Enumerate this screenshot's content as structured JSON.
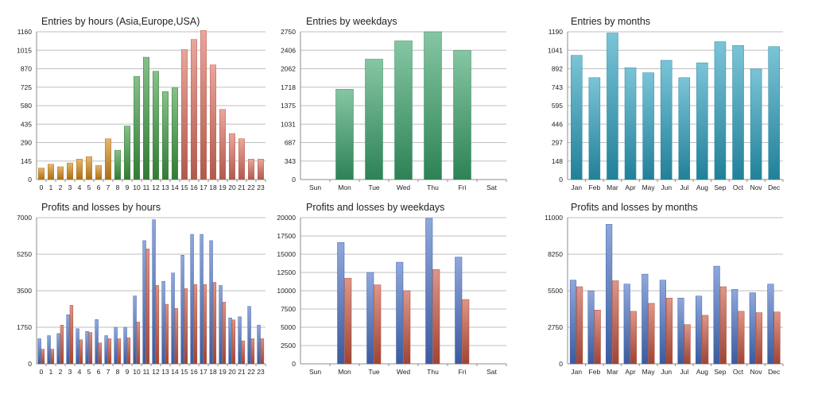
{
  "colors": {
    "hours_asia": "#d48a1a",
    "hours_europe": "#3f9a42",
    "hours_usa": "#dc6f5f",
    "weekdays": "#3aa36a",
    "months": "#2aa0bf",
    "profit": "#4a72c6",
    "loss": "#c9553f"
  },
  "chart_data": [
    {
      "id": "entries-by-hours",
      "type": "bar",
      "title": "Entries by hours (Asia,Europe,USA)",
      "categories": [
        "0",
        "1",
        "2",
        "3",
        "4",
        "5",
        "6",
        "7",
        "8",
        "9",
        "10",
        "11",
        "12",
        "13",
        "14",
        "15",
        "16",
        "17",
        "18",
        "19",
        "20",
        "21",
        "22",
        "23"
      ],
      "values": [
        90,
        120,
        100,
        130,
        160,
        180,
        110,
        320,
        230,
        420,
        810,
        960,
        850,
        690,
        720,
        1020,
        1100,
        1170,
        900,
        550,
        360,
        320,
        160,
        160
      ],
      "bar_colors": [
        "hours_asia",
        "hours_asia",
        "hours_asia",
        "hours_asia",
        "hours_asia",
        "hours_asia",
        "hours_asia",
        "hours_asia",
        "hours_europe",
        "hours_europe",
        "hours_europe",
        "hours_europe",
        "hours_europe",
        "hours_europe",
        "hours_europe",
        "hours_usa",
        "hours_usa",
        "hours_usa",
        "hours_usa",
        "hours_usa",
        "hours_usa",
        "hours_usa",
        "hours_usa",
        "hours_usa"
      ],
      "ylim": [
        0,
        1160
      ],
      "yticks": [
        "0",
        "145",
        "290",
        "435",
        "580",
        "725",
        "870",
        "1015",
        "1160"
      ],
      "grid": true
    },
    {
      "id": "entries-by-weekdays",
      "type": "bar",
      "title": "Entries by weekdays",
      "categories": [
        "Sun",
        "Mon",
        "Tue",
        "Wed",
        "Thu",
        "Fri",
        "Sat"
      ],
      "values": [
        0,
        1680,
        2240,
        2580,
        2750,
        2400,
        0
      ],
      "color": "weekdays",
      "ylim": [
        0,
        2750
      ],
      "yticks": [
        "0",
        "343",
        "687",
        "1031",
        "1375",
        "1718",
        "2062",
        "2406",
        "2750"
      ],
      "grid": true
    },
    {
      "id": "entries-by-months",
      "type": "bar",
      "title": "Entries by months",
      "categories": [
        "Jan",
        "Feb",
        "Mar",
        "Apr",
        "May",
        "Jun",
        "Jul",
        "Aug",
        "Sep",
        "Oct",
        "Nov",
        "Dec"
      ],
      "values": [
        1000,
        820,
        1180,
        900,
        860,
        960,
        820,
        940,
        1110,
        1080,
        890,
        1070
      ],
      "color": "months",
      "ylim": [
        0,
        1190
      ],
      "yticks": [
        "0",
        "148",
        "297",
        "446",
        "595",
        "743",
        "892",
        "1041",
        "1190"
      ],
      "grid": true
    },
    {
      "id": "profits-losses-by-hours",
      "type": "bar",
      "title": "Profits and losses by hours",
      "categories": [
        "0",
        "1",
        "2",
        "3",
        "4",
        "5",
        "6",
        "7",
        "8",
        "9",
        "10",
        "11",
        "12",
        "13",
        "14",
        "15",
        "16",
        "17",
        "18",
        "19",
        "20",
        "21",
        "22",
        "23"
      ],
      "series": [
        {
          "name": "Profits",
          "color": "profit",
          "values": [
            1200,
            1350,
            1450,
            2350,
            1680,
            1550,
            2120,
            1350,
            1750,
            1750,
            3250,
            5900,
            6900,
            3950,
            4350,
            5200,
            6200,
            6200,
            5900,
            3750,
            2200,
            2250,
            2750,
            1850
          ]
        },
        {
          "name": "Losses",
          "color": "loss",
          "values": [
            700,
            700,
            1850,
            2800,
            1150,
            1500,
            1000,
            1200,
            1200,
            1250,
            2000,
            5500,
            3750,
            2850,
            2650,
            3600,
            3800,
            3800,
            3900,
            2950,
            2100,
            1100,
            1200,
            1200
          ]
        }
      ],
      "ylim": [
        0,
        7000
      ],
      "yticks": [
        "0",
        "1750",
        "3500",
        "5250",
        "7000"
      ],
      "grid": true
    },
    {
      "id": "profits-losses-by-weekdays",
      "type": "bar",
      "title": "Profits and losses by weekdays",
      "categories": [
        "Sun",
        "Mon",
        "Tue",
        "Wed",
        "Thu",
        "Fri",
        "Sat"
      ],
      "series": [
        {
          "name": "Profits",
          "color": "profit",
          "values": [
            0,
            16600,
            12500,
            13900,
            19900,
            14600,
            0
          ]
        },
        {
          "name": "Losses",
          "color": "loss",
          "values": [
            0,
            11700,
            10800,
            10000,
            12900,
            8800,
            0
          ]
        }
      ],
      "ylim": [
        0,
        20000
      ],
      "yticks": [
        "0",
        "2500",
        "5000",
        "7500",
        "10000",
        "12500",
        "15000",
        "17500",
        "20000"
      ],
      "grid": true
    },
    {
      "id": "profits-losses-by-months",
      "type": "bar",
      "title": "Profits and losses by months",
      "categories": [
        "Jan",
        "Feb",
        "Mar",
        "Apr",
        "May",
        "Jun",
        "Jul",
        "Aug",
        "Sep",
        "Oct",
        "Nov",
        "Dec"
      ],
      "series": [
        {
          "name": "Profits",
          "color": "profit",
          "values": [
            6300,
            5500,
            10500,
            6000,
            6750,
            6300,
            4950,
            5100,
            7350,
            5600,
            5350,
            6000
          ]
        },
        {
          "name": "Losses",
          "color": "loss",
          "values": [
            5800,
            4050,
            6250,
            3950,
            4550,
            4950,
            2950,
            3650,
            5800,
            3950,
            3850,
            3900
          ]
        }
      ],
      "ylim": [
        0,
        11000
      ],
      "yticks": [
        "0",
        "2750",
        "5500",
        "8250",
        "11000"
      ],
      "grid": true
    }
  ]
}
